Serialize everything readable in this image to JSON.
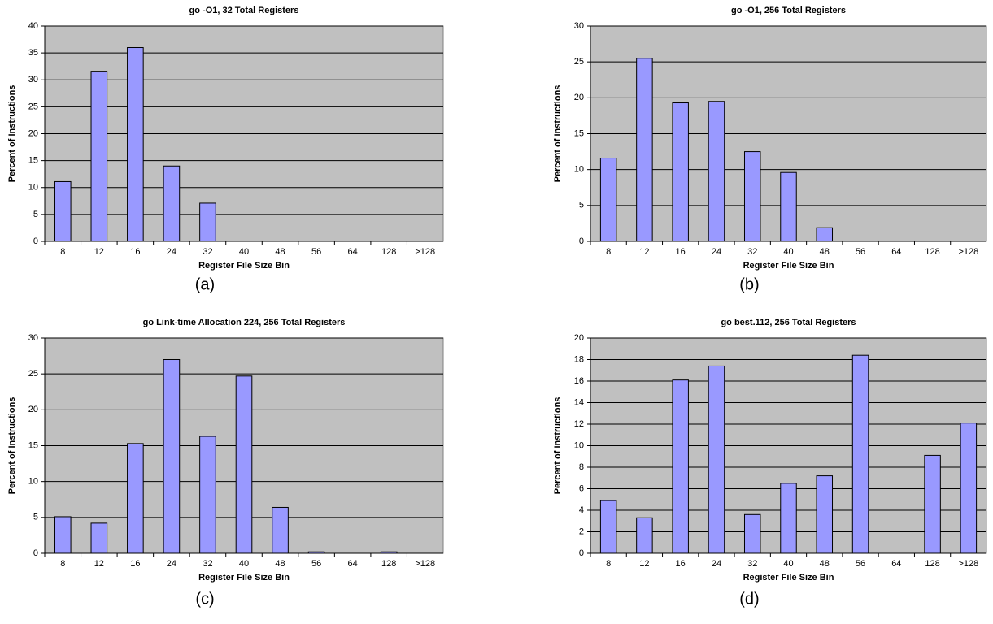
{
  "chart_data": [
    {
      "type": "bar",
      "title": "go -O1, 32 Total Registers",
      "x_label": "Register File Size Bin",
      "y_label": "Percent of Instructions",
      "caption": "(a)",
      "categories": [
        "8",
        "12",
        "16",
        "24",
        "32",
        "40",
        "48",
        "56",
        "64",
        "128",
        ">128"
      ],
      "values": [
        11.1,
        31.6,
        36,
        14,
        7.1,
        0,
        0,
        0,
        0,
        0,
        0
      ],
      "color": "#9999ff",
      "plot_background": "#c0c0c0",
      "ylim": [
        0,
        40
      ],
      "yticks": [
        0,
        5,
        10,
        15,
        20,
        25,
        30,
        35,
        40
      ],
      "grid": true
    },
    {
      "type": "bar",
      "title": "go -O1, 256 Total Registers",
      "x_label": "Register File Size Bin",
      "y_label": "Percent of Instructions",
      "caption": "(b)",
      "categories": [
        "8",
        "12",
        "16",
        "24",
        "32",
        "40",
        "48",
        "56",
        "64",
        "128",
        ">128"
      ],
      "values": [
        11.6,
        25.5,
        19.3,
        19.5,
        12.5,
        9.6,
        1.9,
        0,
        0,
        0,
        0
      ],
      "color": "#9999ff",
      "plot_background": "#c0c0c0",
      "ylim": [
        0,
        30
      ],
      "yticks": [
        0,
        5,
        10,
        15,
        20,
        25,
        30
      ],
      "grid": true
    },
    {
      "type": "bar",
      "title": "go Link-time Allocation 224, 256 Total Registers",
      "x_label": "Register File Size Bin",
      "y_label": "Percent of Instructions",
      "caption": "(c)",
      "categories": [
        "8",
        "12",
        "16",
        "24",
        "32",
        "40",
        "48",
        "56",
        "64",
        "128",
        ">128"
      ],
      "values": [
        5.1,
        4.2,
        15.3,
        27,
        16.3,
        24.7,
        6.4,
        0.2,
        0,
        0.2,
        0
      ],
      "color": "#9999ff",
      "plot_background": "#c0c0c0",
      "ylim": [
        0,
        30
      ],
      "yticks": [
        0,
        5,
        10,
        15,
        20,
        25,
        30
      ],
      "grid": true
    },
    {
      "type": "bar",
      "title": "go best.112, 256 Total Registers",
      "x_label": "Register File Size Bin",
      "y_label": "Percent of Instructions",
      "caption": "(d)",
      "categories": [
        "8",
        "12",
        "16",
        "24",
        "32",
        "40",
        "48",
        "56",
        "64",
        "128",
        ">128"
      ],
      "values": [
        4.9,
        3.3,
        16.1,
        17.4,
        3.6,
        6.5,
        7.2,
        18.4,
        0,
        9.1,
        12.1
      ],
      "color": "#9999ff",
      "plot_background": "#c0c0c0",
      "ylim": [
        0,
        20
      ],
      "yticks": [
        0,
        2,
        4,
        6,
        8,
        10,
        12,
        14,
        16,
        18,
        20
      ],
      "grid": true
    }
  ]
}
